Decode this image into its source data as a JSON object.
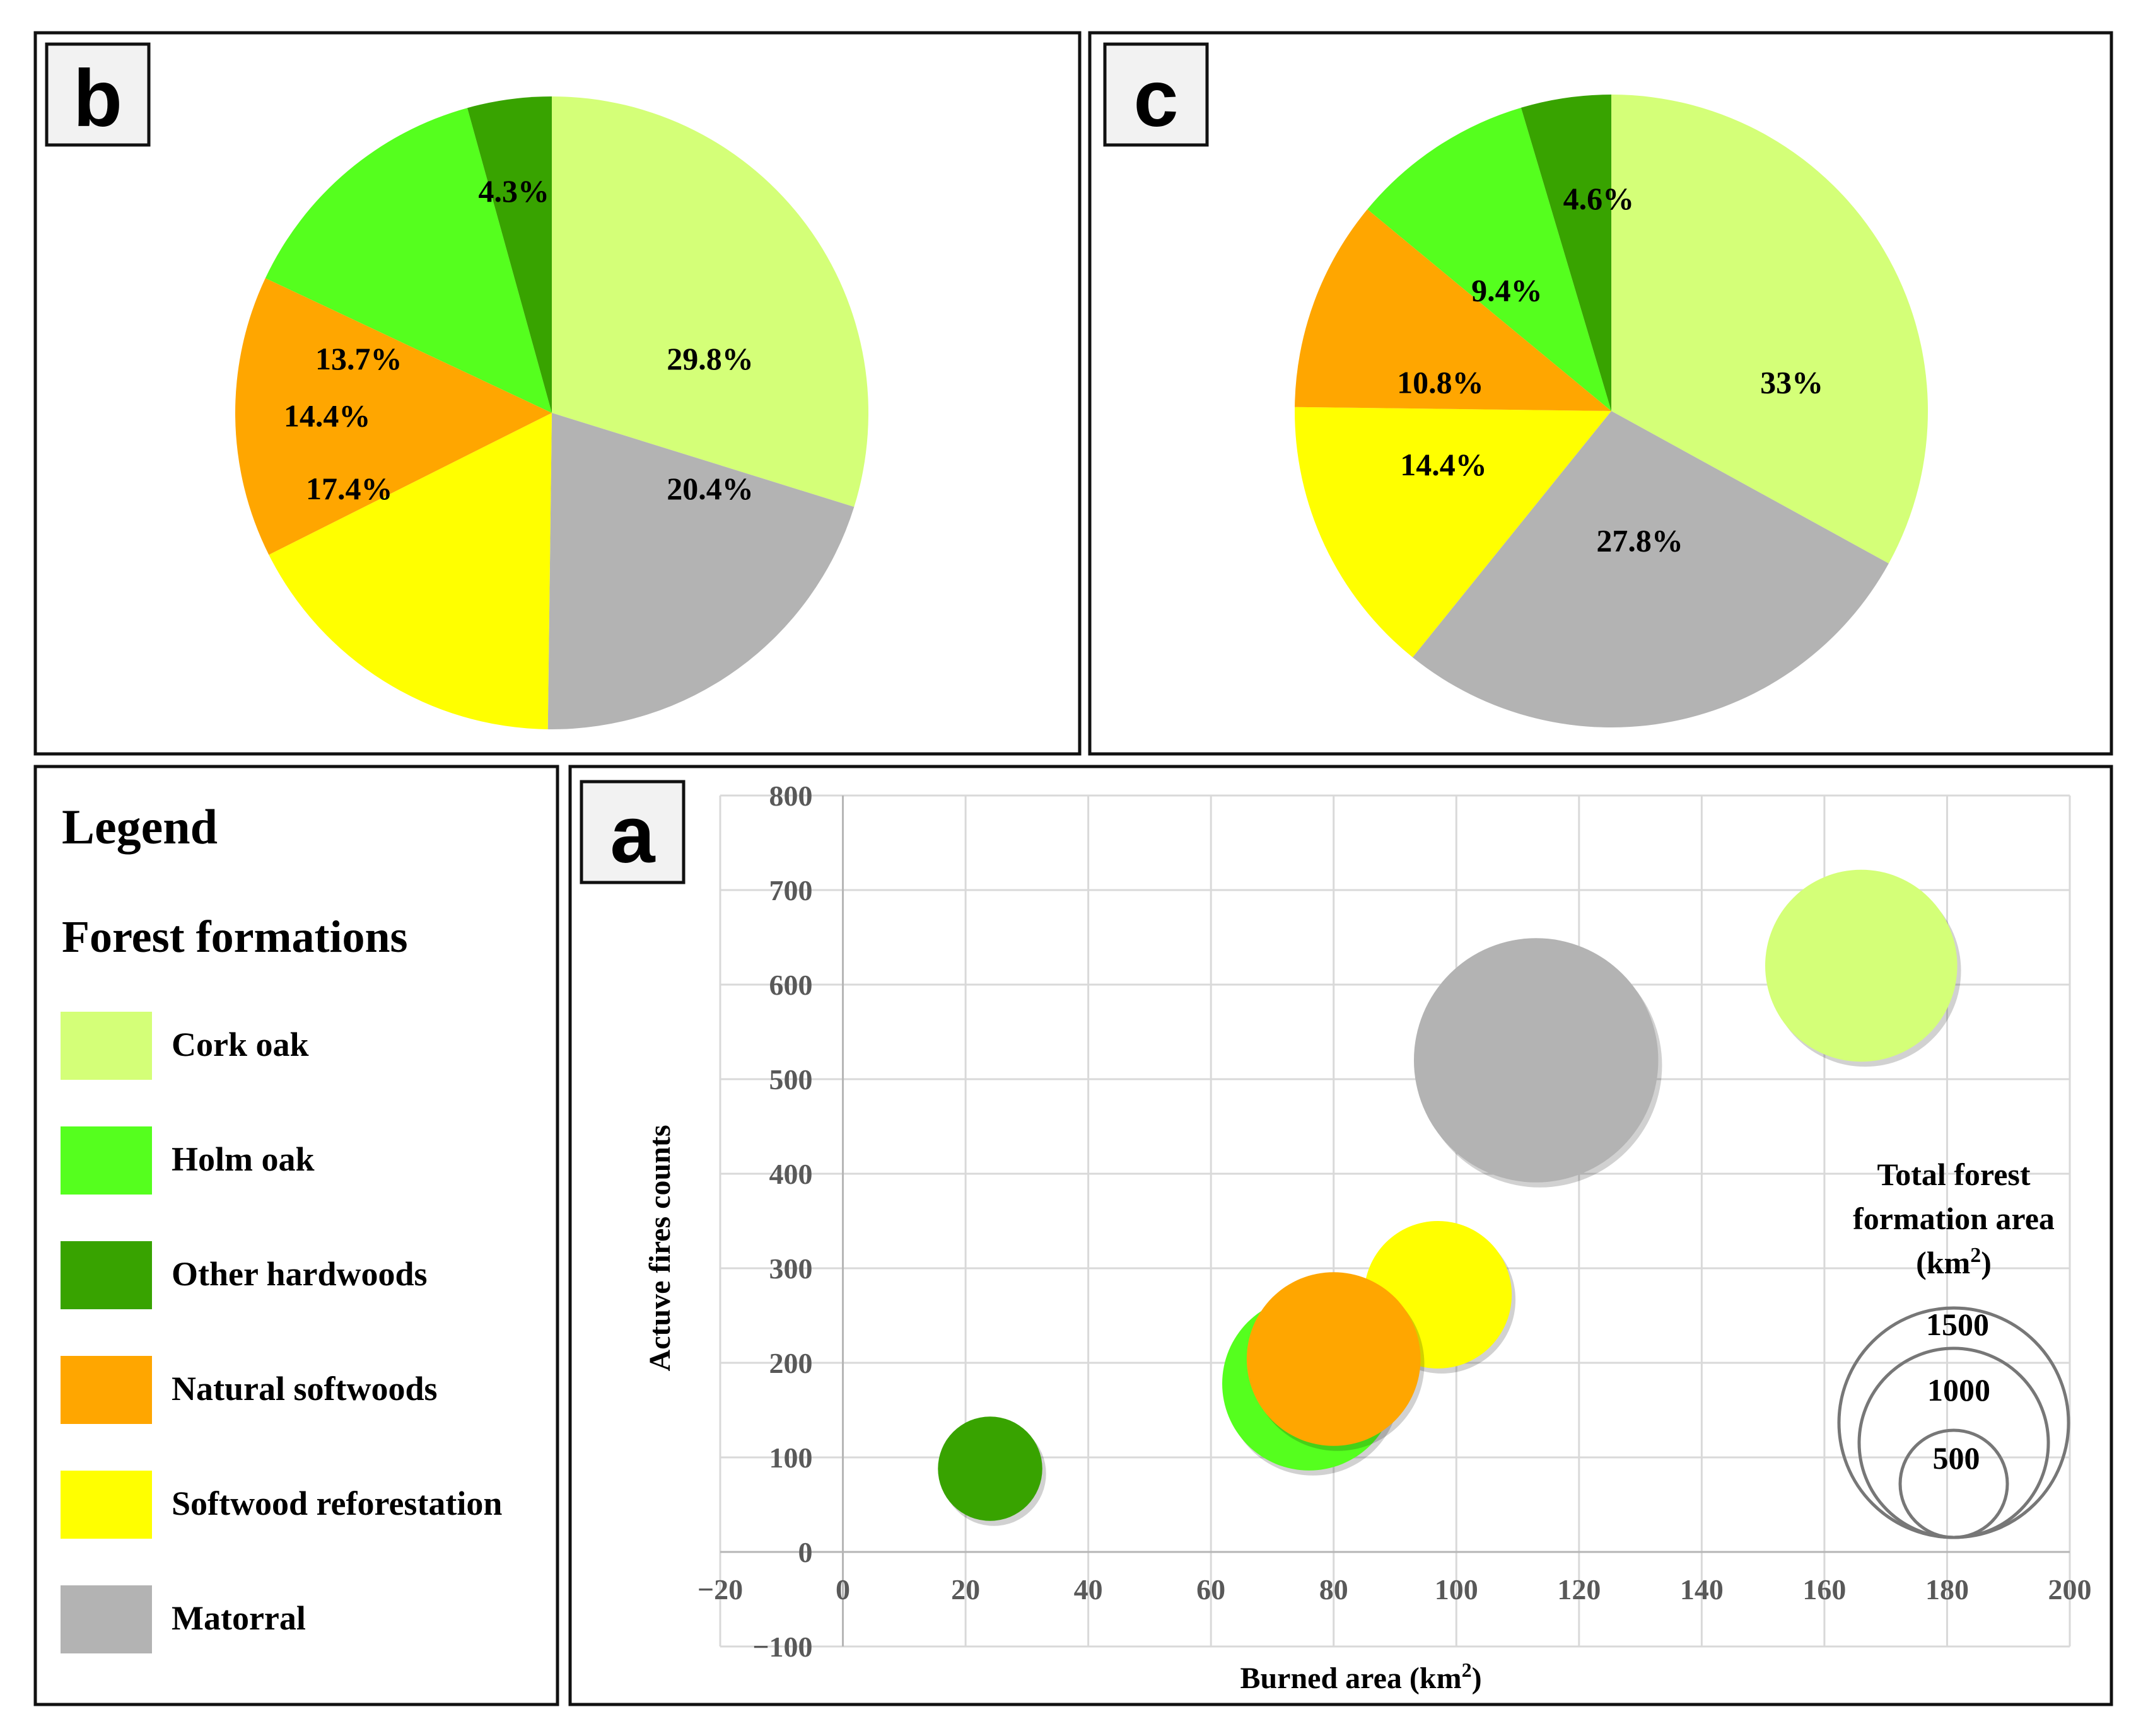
{
  "panels": {
    "b": {
      "letter": "b"
    },
    "c": {
      "letter": "c"
    },
    "a": {
      "letter": "a"
    }
  },
  "legend": {
    "title": "Legend",
    "subtitle": "Forest formations",
    "items": [
      {
        "label": "Cork oak",
        "color": "#D4FF78"
      },
      {
        "label": "Holm oak",
        "color": "#55FF1E"
      },
      {
        "label": "Other hardwoods",
        "color": "#38A300"
      },
      {
        "label": "Natural softwoods",
        "color": "#FFA600"
      },
      {
        "label": "Softwood reforestation",
        "color": "#FFFF00"
      },
      {
        "label": "Matorral",
        "color": "#B3B3B3"
      }
    ]
  },
  "size_key": {
    "title_lines": [
      "Total forest",
      "formation area"
    ],
    "unit_base": "(km",
    "unit_sup": "2",
    "unit_end": ")",
    "values": [
      1500,
      1000,
      500
    ]
  },
  "chart_data": [
    {
      "panel": "b",
      "type": "pie",
      "slices": [
        {
          "name": "Cork oak",
          "value": 29.8,
          "label": "29.8%",
          "color": "#D4FF78"
        },
        {
          "name": "Matorral",
          "value": 20.4,
          "label": "20.4%",
          "color": "#B3B3B3"
        },
        {
          "name": "Softwood reforestation",
          "value": 17.4,
          "label": "17.4%",
          "color": "#FFFF00"
        },
        {
          "name": "Natural softwoods",
          "value": 14.4,
          "label": "14.4%",
          "color": "#FFA600"
        },
        {
          "name": "Holm oak",
          "value": 13.7,
          "label": "13.7%",
          "color": "#55FF1E"
        },
        {
          "name": "Other hardwoods",
          "value": 4.3,
          "label": "4.3%",
          "color": "#38A300"
        }
      ]
    },
    {
      "panel": "c",
      "type": "pie",
      "slices": [
        {
          "name": "Cork oak",
          "value": 33,
          "label": "33%",
          "color": "#D4FF78"
        },
        {
          "name": "Matorral",
          "value": 27.8,
          "label": "27.8%",
          "color": "#B3B3B3"
        },
        {
          "name": "Softwood reforestation",
          "value": 14.4,
          "label": "14.4%",
          "color": "#FFFF00"
        },
        {
          "name": "Natural softwoods",
          "value": 10.8,
          "label": "10.8%",
          "color": "#FFA600"
        },
        {
          "name": "Holm oak",
          "value": 9.4,
          "label": "9.4%",
          "color": "#55FF1E"
        },
        {
          "name": "Other hardwoods",
          "value": 4.6,
          "label": "4.6%",
          "color": "#38A300"
        }
      ]
    },
    {
      "panel": "a",
      "type": "scatter",
      "subtype": "bubble",
      "xlabel": "Burned area (km",
      "xlabel_sup": "2",
      "xlabel_end": ")",
      "ylabel": "Actuve fires counts",
      "xlim": [
        -20,
        200
      ],
      "ylim": [
        -100,
        800
      ],
      "xticks": [
        -20,
        0,
        20,
        40,
        60,
        80,
        100,
        120,
        140,
        160,
        180,
        200
      ],
      "yticks": [
        -100,
        0,
        100,
        200,
        300,
        400,
        500,
        600,
        700,
        800
      ],
      "xtick_labels": [
        "−20",
        "0",
        "20",
        "40",
        "60",
        "80",
        "100",
        "120",
        "140",
        "160",
        "180",
        "200"
      ],
      "ytick_labels": [
        "−100",
        "0",
        "100",
        "200",
        "300",
        "400",
        "500",
        "600",
        "700",
        "800"
      ],
      "grid": true,
      "bubble_scale_area_km2_for_key": 1500,
      "points": [
        {
          "name": "Cork oak",
          "x": 166,
          "y": 620,
          "size": 1050,
          "color": "#D4FF78"
        },
        {
          "name": "Matorral",
          "x": 113,
          "y": 520,
          "size": 1700,
          "color": "#B3B3B3"
        },
        {
          "name": "Softwood reforestation",
          "x": 97,
          "y": 272,
          "size": 620,
          "color": "#FFFF00"
        },
        {
          "name": "Holm oak",
          "x": 76,
          "y": 178,
          "size": 860,
          "color": "#55FF1E"
        },
        {
          "name": "Natural softwoods",
          "x": 80,
          "y": 204,
          "size": 860,
          "color": "#FFA600"
        },
        {
          "name": "Other hardwoods",
          "x": 24,
          "y": 88,
          "size": 310,
          "color": "#38A300"
        }
      ]
    }
  ]
}
